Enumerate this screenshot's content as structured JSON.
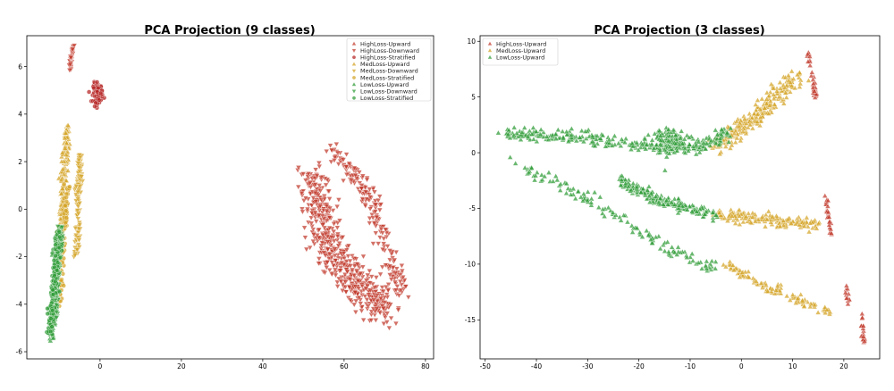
{
  "chart_data": [
    {
      "type": "scatter",
      "title": "PCA Projection (9 classes)",
      "xlabel": "",
      "ylabel": "",
      "xlim": [
        -18,
        82
      ],
      "ylim": [
        -6.3,
        7.3
      ],
      "xticks": [
        0,
        20,
        40,
        60,
        80
      ],
      "yticks": [
        -6,
        -4,
        -2,
        0,
        2,
        4,
        6
      ],
      "grid": false,
      "legend_position": "top-right",
      "series": [
        {
          "name": "HighLoss-Upward",
          "color": "#c0392b",
          "marker": "triangle-up",
          "clusters": []
        },
        {
          "name": "HighLoss-Downward",
          "color": "#c0392b",
          "marker": "triangle-down",
          "clusters": [
            {
              "shape": "band",
              "points": [
                [
                  -6.5,
                  7.0
                ],
                [
                  -7.5,
                  5.8
                ]
              ],
              "width": 0.6,
              "n": 40
            },
            {
              "shape": "band",
              "points": [
                [
                  52,
                  1.4
                ],
                [
                  56,
                  -1.5
                ],
                [
                  62,
                  -2.9
                ],
                [
                  70,
                  -4.3
                ]
              ],
              "width": 6,
              "n": 560
            },
            {
              "shape": "band",
              "points": [
                [
                  57,
                  2.6
                ],
                [
                  66,
                  0.6
                ],
                [
                  70,
                  -1.5
                ],
                [
                  74,
                  -3.5
                ]
              ],
              "width": 3.5,
              "n": 200
            }
          ]
        },
        {
          "name": "HighLoss-Stratified",
          "color": "#b52222",
          "marker": "circle",
          "clusters": [
            {
              "shape": "blob",
              "center": [
                -0.5,
                4.9
              ],
              "spread": [
                1.3,
                0.45
              ],
              "n": 110
            }
          ]
        },
        {
          "name": "MedLoss-Upward",
          "color": "#d4a326",
          "marker": "triangle-up",
          "clusters": [
            {
              "shape": "band",
              "points": [
                [
                  -8,
                  3.5
                ],
                [
                  -9,
                  1
                ],
                [
                  -10,
                  -2.3
                ]
              ],
              "width": 1.2,
              "n": 220
            }
          ]
        },
        {
          "name": "MedLoss-Downward",
          "color": "#d4a326",
          "marker": "triangle-down",
          "clusters": [
            {
              "shape": "band",
              "points": [
                [
                  -5,
                  2.3
                ],
                [
                  -5.5,
                  -1
                ],
                [
                  -6,
                  -2
                ]
              ],
              "width": 1.0,
              "n": 140
            }
          ]
        },
        {
          "name": "MedLoss-Stratified",
          "color": "#d4a326",
          "marker": "circle",
          "clusters": [
            {
              "shape": "band",
              "points": [
                [
                  -8,
                  1
                ],
                [
                  -9.5,
                  -2.5
                ],
                [
                  -10,
                  -4
                ]
              ],
              "width": 1.0,
              "n": 100
            }
          ]
        },
        {
          "name": "LowLoss-Upward",
          "color": "#2e9b36",
          "marker": "triangle-up",
          "clusters": [
            {
              "shape": "band",
              "points": [
                [
                  -10,
                  -1
                ],
                [
                  -12,
                  -5.5
                ]
              ],
              "width": 1.2,
              "n": 160
            }
          ]
        },
        {
          "name": "LowLoss-Downward",
          "color": "#2e9b36",
          "marker": "triangle-down",
          "clusters": [
            {
              "shape": "band",
              "points": [
                [
                  -9.5,
                  -0.6
                ],
                [
                  -11,
                  -4.5
                ]
              ],
              "width": 1.0,
              "n": 100
            }
          ]
        },
        {
          "name": "LowLoss-Stratified",
          "color": "#2e9b36",
          "marker": "circle",
          "clusters": [
            {
              "shape": "band",
              "points": [
                [
                  -10,
                  -1
                ],
                [
                  -12.5,
                  -5.2
                ]
              ],
              "width": 1.3,
              "n": 160
            }
          ]
        }
      ]
    },
    {
      "type": "scatter",
      "title": "PCA Projection (3 classes)",
      "xlabel": "",
      "ylabel": "",
      "xlim": [
        -51,
        27
      ],
      "ylim": [
        -18.5,
        10.5
      ],
      "xticks": [
        -50,
        -40,
        -30,
        -20,
        -10,
        0,
        10,
        20
      ],
      "yticks": [
        -15,
        -10,
        -5,
        0,
        5,
        10
      ],
      "grid": false,
      "legend_position": "top-left",
      "series": [
        {
          "name": "HighLoss-Upward",
          "color": "#c0392b",
          "marker": "triangle-up",
          "clusters": [
            {
              "shape": "band",
              "points": [
                [
                  13,
                  9
                ],
                [
                  14.5,
                  5
                ]
              ],
              "width": 0.7,
              "n": 35
            },
            {
              "shape": "band",
              "points": [
                [
                  16.5,
                  -4
                ],
                [
                  17.5,
                  -7.5
                ]
              ],
              "width": 0.6,
              "n": 30
            },
            {
              "shape": "band",
              "points": [
                [
                  20.5,
                  -12
                ],
                [
                  21,
                  -13.8
                ]
              ],
              "width": 0.4,
              "n": 12
            },
            {
              "shape": "band",
              "points": [
                [
                  23.5,
                  -14.5
                ],
                [
                  24,
                  -17.5
                ]
              ],
              "width": 0.5,
              "n": 22
            }
          ]
        },
        {
          "name": "MedLoss-Upward",
          "color": "#d4a326",
          "marker": "triangle-up",
          "clusters": [
            {
              "shape": "band",
              "points": [
                [
                  -5,
                  0.5
                ],
                [
                  2,
                  3
                ],
                [
                  7,
                  5
                ],
                [
                  11,
                  7
                ]
              ],
              "width": 2.6,
              "n": 240
            },
            {
              "shape": "band",
              "points": [
                [
                  -5,
                  -5.5
                ],
                [
                  5,
                  -6
                ],
                [
                  15,
                  -6.5
                ]
              ],
              "width": 1.8,
              "n": 170
            },
            {
              "shape": "band",
              "points": [
                [
                  -3,
                  -10
                ],
                [
                  5,
                  -12
                ],
                [
                  13,
                  -13.5
                ],
                [
                  18,
                  -14.5
                ]
              ],
              "width": 1.4,
              "n": 110
            }
          ]
        },
        {
          "name": "LowLoss-Upward",
          "color": "#2e9b36",
          "marker": "triangle-up",
          "clusters": [
            {
              "shape": "band",
              "points": [
                [
                  -46,
                  1.7
                ],
                [
                  -30,
                  1.3
                ],
                [
                  -18,
                  0.5
                ],
                [
                  -8,
                  0.5
                ],
                [
                  -2,
                  2
                ]
              ],
              "width": 1.8,
              "n": 300
            },
            {
              "shape": "band",
              "points": [
                [
                  -46,
                  -0.5
                ],
                [
                  -35,
                  -3
                ],
                [
                  -25,
                  -5.5
                ],
                [
                  -15,
                  -8.5
                ],
                [
                  -5,
                  -10.5
                ]
              ],
              "width": 2.0,
              "n": 130
            },
            {
              "shape": "band",
              "points": [
                [
                  -24,
                  -2.5
                ],
                [
                  -15,
                  -4.5
                ],
                [
                  -5,
                  -5.5
                ]
              ],
              "width": 1.6,
              "n": 200
            },
            {
              "shape": "blob",
              "center": [
                -14,
                1
              ],
              "spread": [
                3.5,
                1.2
              ],
              "n": 150
            }
          ]
        }
      ]
    }
  ]
}
